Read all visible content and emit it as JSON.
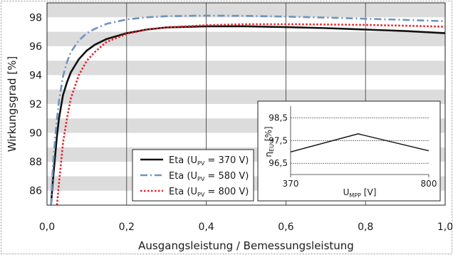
{
  "chart_data": {
    "type": "line",
    "xlabel": "Ausgangsleistung / Bemessungsleistung",
    "ylabel": "Wirkungsgrad [%]",
    "xlim": [
      0.0,
      1.0
    ],
    "ylim": [
      85.0,
      99.0
    ],
    "x_ticks": [
      "0,0",
      "0,2",
      "0,4",
      "0,6",
      "0,8",
      "1,0"
    ],
    "y_ticks": [
      "86",
      "88",
      "90",
      "92",
      "94",
      "96",
      "98"
    ],
    "grid": "vertical lines, alternating horizontal bands",
    "legend_position": "bottom-center",
    "series": [
      {
        "name": "Eta (U_PV = 370 V)",
        "legend_main": "Eta (U",
        "legend_sub": "PV",
        "legend_rest": " = 370 V)",
        "color": "#111111",
        "style": "solid",
        "x": [
          0.01,
          0.015,
          0.02,
          0.025,
          0.03,
          0.04,
          0.05,
          0.06,
          0.08,
          0.1,
          0.12,
          0.15,
          0.2,
          0.25,
          0.3,
          0.4,
          0.5,
          0.6,
          0.7,
          0.8,
          0.9,
          1.0
        ],
        "y": [
          85.0,
          86.8,
          88.3,
          89.8,
          91.0,
          92.6,
          93.5,
          94.2,
          95.1,
          95.7,
          96.1,
          96.5,
          96.9,
          97.15,
          97.3,
          97.38,
          97.38,
          97.32,
          97.25,
          97.15,
          97.05,
          96.9
        ]
      },
      {
        "name": "Eta (U_PV = 580 V)",
        "legend_main": "Eta (U",
        "legend_sub": "PV",
        "legend_rest": " = 580 V)",
        "color": "#6f93c0",
        "style": "dashdot",
        "x": [
          0.01,
          0.015,
          0.02,
          0.025,
          0.03,
          0.04,
          0.05,
          0.06,
          0.08,
          0.1,
          0.12,
          0.15,
          0.2,
          0.25,
          0.3,
          0.4,
          0.5,
          0.6,
          0.7,
          0.8,
          0.9,
          1.0
        ],
        "y": [
          85.0,
          87.8,
          89.5,
          91.0,
          92.2,
          93.9,
          94.9,
          95.6,
          96.4,
          96.9,
          97.2,
          97.55,
          97.85,
          98.0,
          98.08,
          98.12,
          98.1,
          98.05,
          97.98,
          97.9,
          97.82,
          97.73
        ]
      },
      {
        "name": "Eta (U_PV = 800 V)",
        "legend_main": "Eta (U",
        "legend_sub": "PV",
        "legend_rest": " = 800 V)",
        "color": "#e8202a",
        "style": "dotted",
        "x": [
          0.025,
          0.03,
          0.04,
          0.05,
          0.06,
          0.08,
          0.1,
          0.12,
          0.15,
          0.2,
          0.25,
          0.3,
          0.4,
          0.5,
          0.6,
          0.7,
          0.8,
          0.9,
          1.0
        ],
        "y": [
          85.0,
          86.5,
          89.3,
          91.0,
          92.4,
          94.0,
          95.0,
          95.6,
          96.3,
          96.85,
          97.15,
          97.3,
          97.45,
          97.52,
          97.52,
          97.5,
          97.47,
          97.42,
          97.35
        ]
      }
    ],
    "inset": {
      "type": "line",
      "xlabel_main": "U",
      "xlabel_sub": "MPP",
      "xlabel_rest": " [V]",
      "ylabel_main": "η",
      "ylabel_sub": "EU",
      "ylabel_rest": " [%]",
      "x_ticks": [
        "370",
        "800"
      ],
      "y_ticks": [
        "98,5",
        "97,5",
        "96,5"
      ],
      "xlim": [
        370,
        800
      ],
      "ylim": [
        96.0,
        98.9
      ],
      "x": [
        370,
        580,
        800
      ],
      "y": [
        97.0,
        97.8,
        97.05
      ],
      "color": "#111111"
    }
  }
}
